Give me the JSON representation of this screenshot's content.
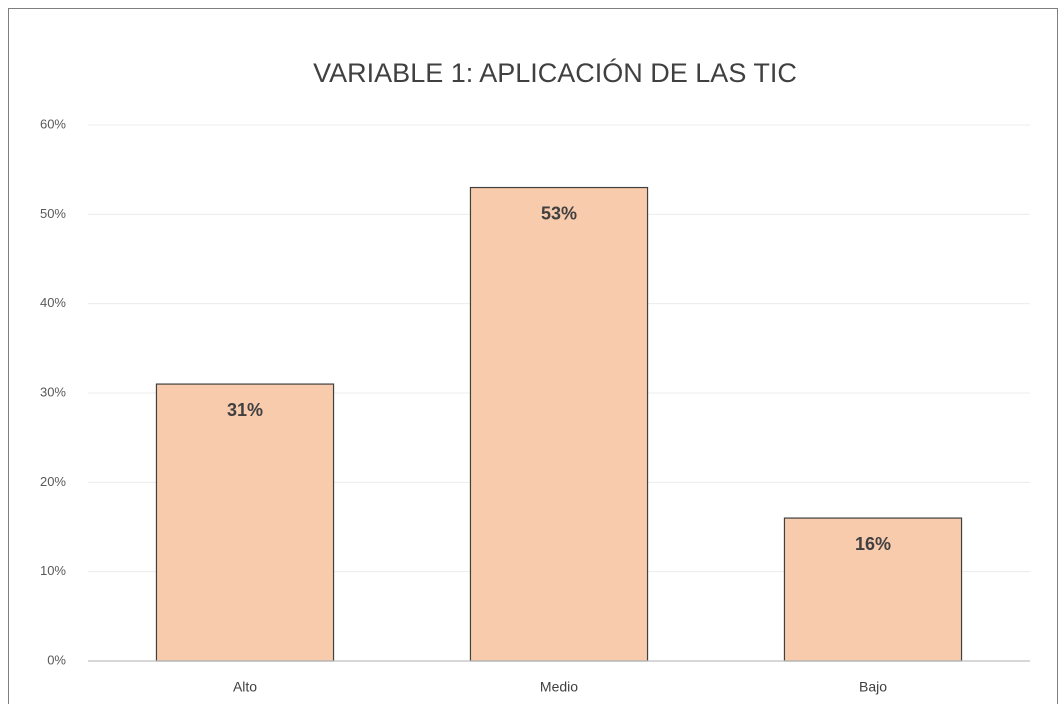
{
  "chart_data": {
    "type": "bar",
    "title": "VARIABLE 1: APLICACIÓN DE LAS TIC",
    "categories": [
      "Alto",
      "Medio",
      "Bajo"
    ],
    "values": [
      31,
      53,
      16
    ],
    "value_labels": [
      "31%",
      "53%",
      "16%"
    ],
    "color": "#f8cbad",
    "ylim": [
      0,
      60
    ],
    "yticks": [
      {
        "value": 0,
        "label": "0%"
      },
      {
        "value": 10,
        "label": "10%"
      },
      {
        "value": 20,
        "label": "20%"
      },
      {
        "value": 30,
        "label": "30%"
      },
      {
        "value": 40,
        "label": "40%"
      },
      {
        "value": 50,
        "label": "50%"
      },
      {
        "value": 60,
        "label": "60%"
      }
    ],
    "grid": true
  }
}
